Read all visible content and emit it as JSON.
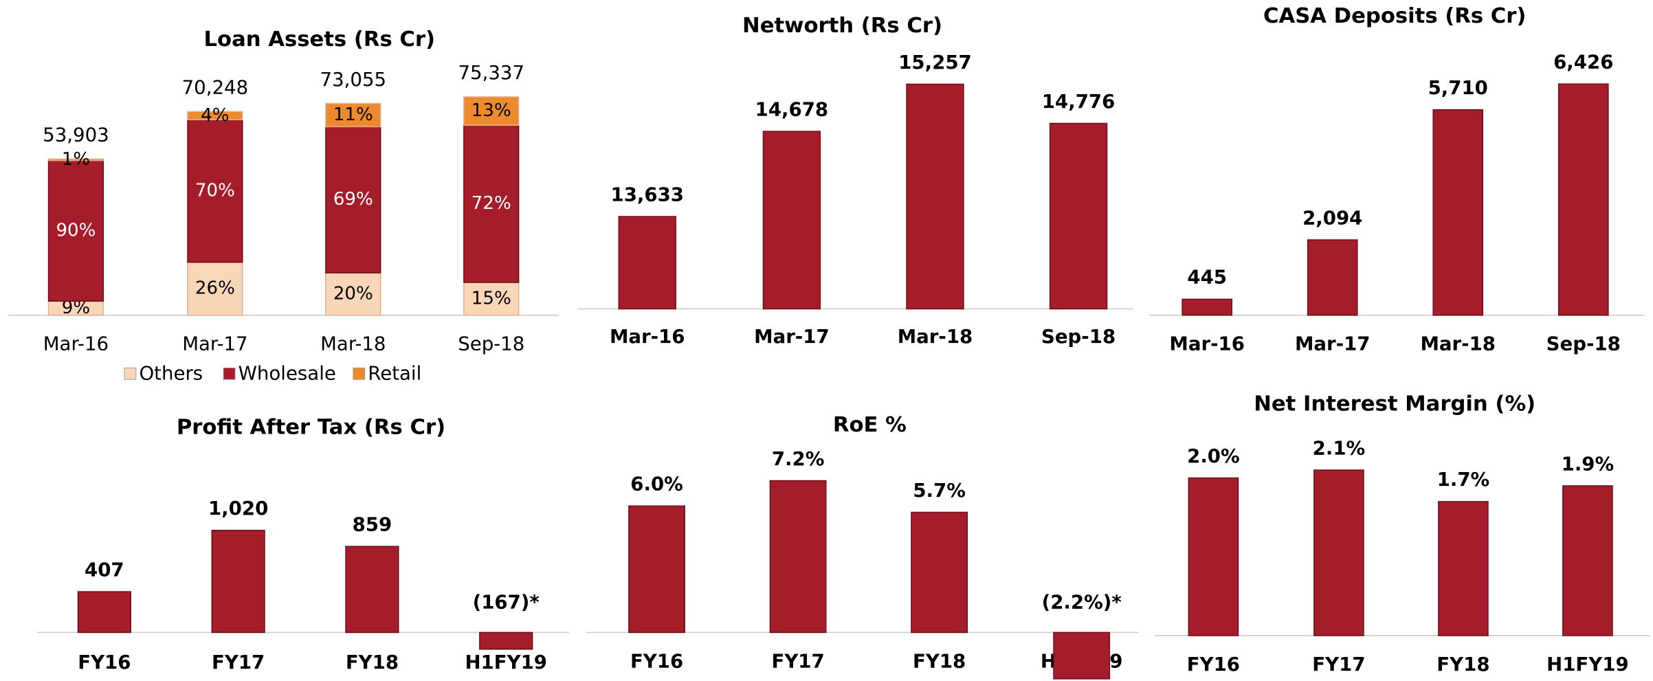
{
  "chart_data": [
    {
      "type": "stacked_bar",
      "title": "Loan Assets (Rs Cr)",
      "categories": [
        "Mar-16",
        "Mar-17",
        "Mar-18",
        "Sep-18"
      ],
      "series": [
        {
          "name": "Others",
          "color": "#fad6b8",
          "values": [
            9,
            26,
            20,
            15
          ],
          "value_labels": [
            "9%",
            "26%",
            "20%",
            "15%"
          ]
        },
        {
          "name": "Wholesale",
          "color": "#a51c2b",
          "values": [
            90,
            70,
            69,
            72
          ],
          "value_labels": [
            "90%",
            "70%",
            "69%",
            "72%"
          ]
        },
        {
          "name": "Retail",
          "color": "#ee8a2e",
          "values": [
            1,
            4,
            11,
            13
          ],
          "value_labels": [
            "1%",
            "4%",
            "11%",
            "13%"
          ]
        }
      ],
      "totals": {
        "values": [
          53903,
          70248,
          73055,
          75337
        ],
        "value_labels": [
          "53,903",
          "70,248",
          "73,055",
          "75,337"
        ]
      },
      "ylim": [
        0,
        80000
      ],
      "legend": "bottom"
    },
    {
      "type": "bar",
      "title": "Networth (Rs Cr)",
      "categories": [
        "Mar-16",
        "Mar-17",
        "Mar-18",
        "Sep-18"
      ],
      "values": [
        13633,
        14678,
        15257,
        14776
      ],
      "value_labels": [
        "13,633",
        "14,678",
        "15,257",
        "14,776"
      ],
      "color": "#a51c2b",
      "ylim": [
        12500,
        15500
      ]
    },
    {
      "type": "bar",
      "title": "CASA Deposits (Rs Cr)",
      "categories": [
        "Mar-16",
        "Mar-17",
        "Mar-18",
        "Sep-18"
      ],
      "values": [
        445,
        2094,
        5710,
        6426
      ],
      "value_labels": [
        "445",
        "2,094",
        "5,710",
        "6,426"
      ],
      "color": "#a51c2b",
      "ylim": [
        0,
        7000
      ]
    },
    {
      "type": "bar",
      "title": "Profit After Tax (Rs Cr)",
      "categories": [
        "FY16",
        "FY17",
        "FY18",
        "H1FY19"
      ],
      "values": [
        407,
        1020,
        859,
        -167
      ],
      "value_labels": [
        "407",
        "1,020",
        "859",
        "(167)*"
      ],
      "color": "#a51c2b",
      "ylim": [
        -200,
        1200
      ]
    },
    {
      "type": "bar",
      "title": "RoE %",
      "categories": [
        "FY16",
        "FY17",
        "FY18",
        "H1FY19"
      ],
      "values": [
        6.0,
        7.2,
        5.7,
        -2.2
      ],
      "value_labels": [
        "6.0%",
        "7.2%",
        "5.7%",
        "(2.2%)*"
      ],
      "color": "#a51c2b",
      "ylim": [
        -2.5,
        8
      ]
    },
    {
      "type": "bar",
      "title": "Net Interest Margin (%)",
      "categories": [
        "FY16",
        "FY17",
        "FY18",
        "H1FY19"
      ],
      "values": [
        2.0,
        2.1,
        1.7,
        1.9
      ],
      "value_labels": [
        "2.0%",
        "2.1%",
        "1.7%",
        "1.9%"
      ],
      "color": "#a51c2b",
      "ylim": [
        0,
        2.5
      ]
    }
  ]
}
